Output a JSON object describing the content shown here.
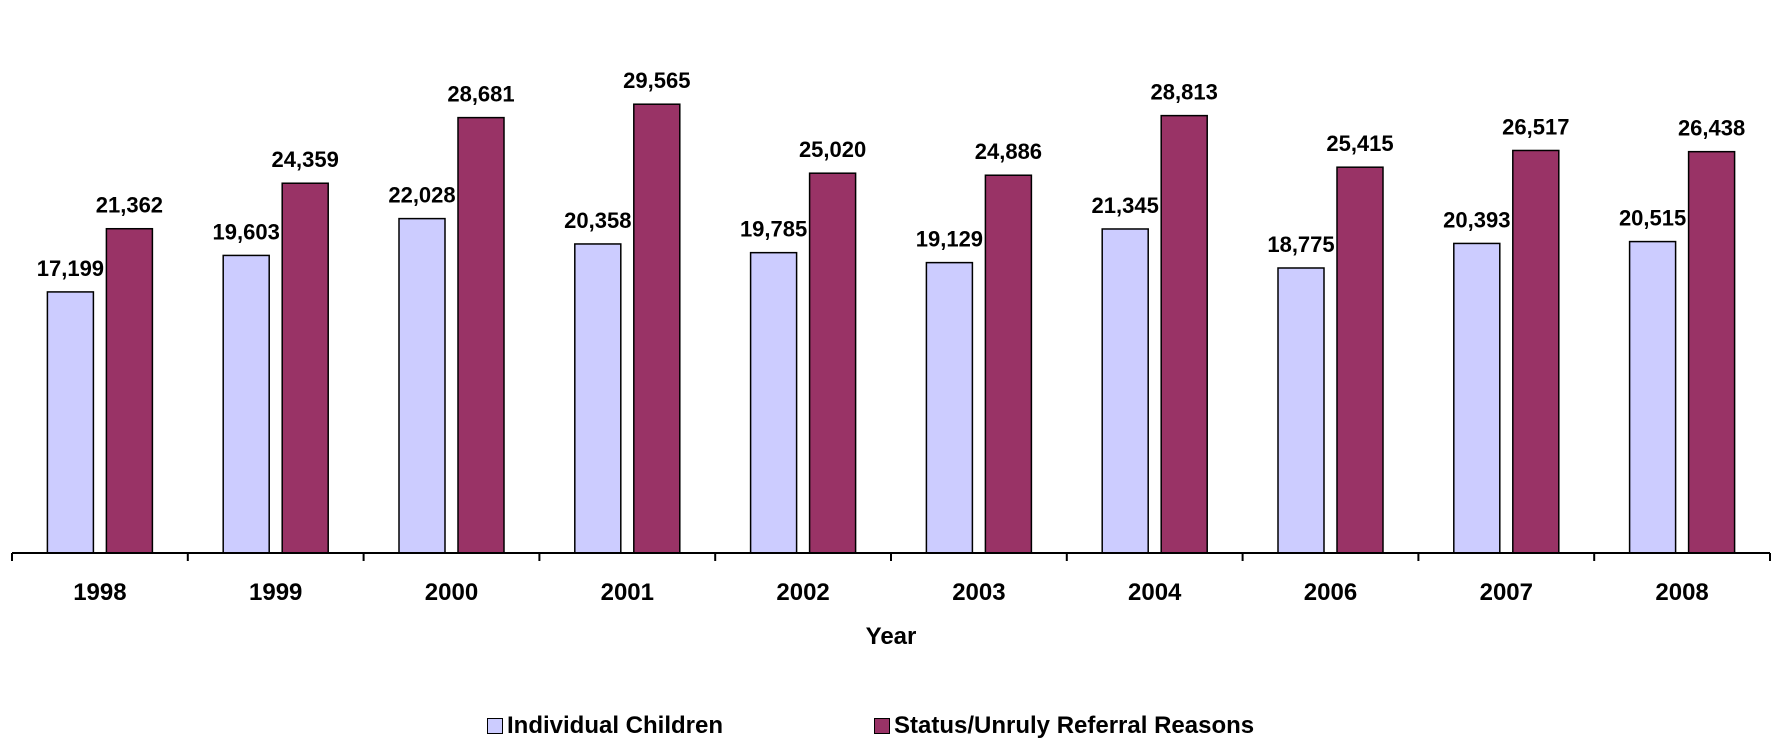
{
  "chart_data": {
    "type": "bar",
    "title": "",
    "xlabel": "Year",
    "ylabel": "",
    "categories": [
      "1998",
      "1999",
      "2000",
      "2001",
      "2002",
      "2003",
      "2004",
      "2006",
      "2007",
      "2008"
    ],
    "series": [
      {
        "name": "Individual Children",
        "color": "#ccccff",
        "values": [
          17199,
          19603,
          22028,
          20358,
          19785,
          19129,
          21345,
          18775,
          20393,
          20515
        ],
        "labels": [
          "17,199",
          "19,603",
          "22,028",
          "20,358",
          "19,785",
          "19,129",
          "21,345",
          "18,775",
          "20,393",
          "20,515"
        ]
      },
      {
        "name": "Status/Unruly Referral Reasons",
        "color": "#993366",
        "values": [
          21362,
          24359,
          28681,
          29565,
          25020,
          24886,
          28813,
          25415,
          26517,
          26438
        ],
        "labels": [
          "21,362",
          "24,359",
          "28,681",
          "29,565",
          "25,020",
          "24,886",
          "28,813",
          "25,415",
          "26,517",
          "26,438"
        ]
      }
    ],
    "ylim": [
      0,
      32500
    ],
    "grid": false,
    "legend": "bottom-center"
  }
}
